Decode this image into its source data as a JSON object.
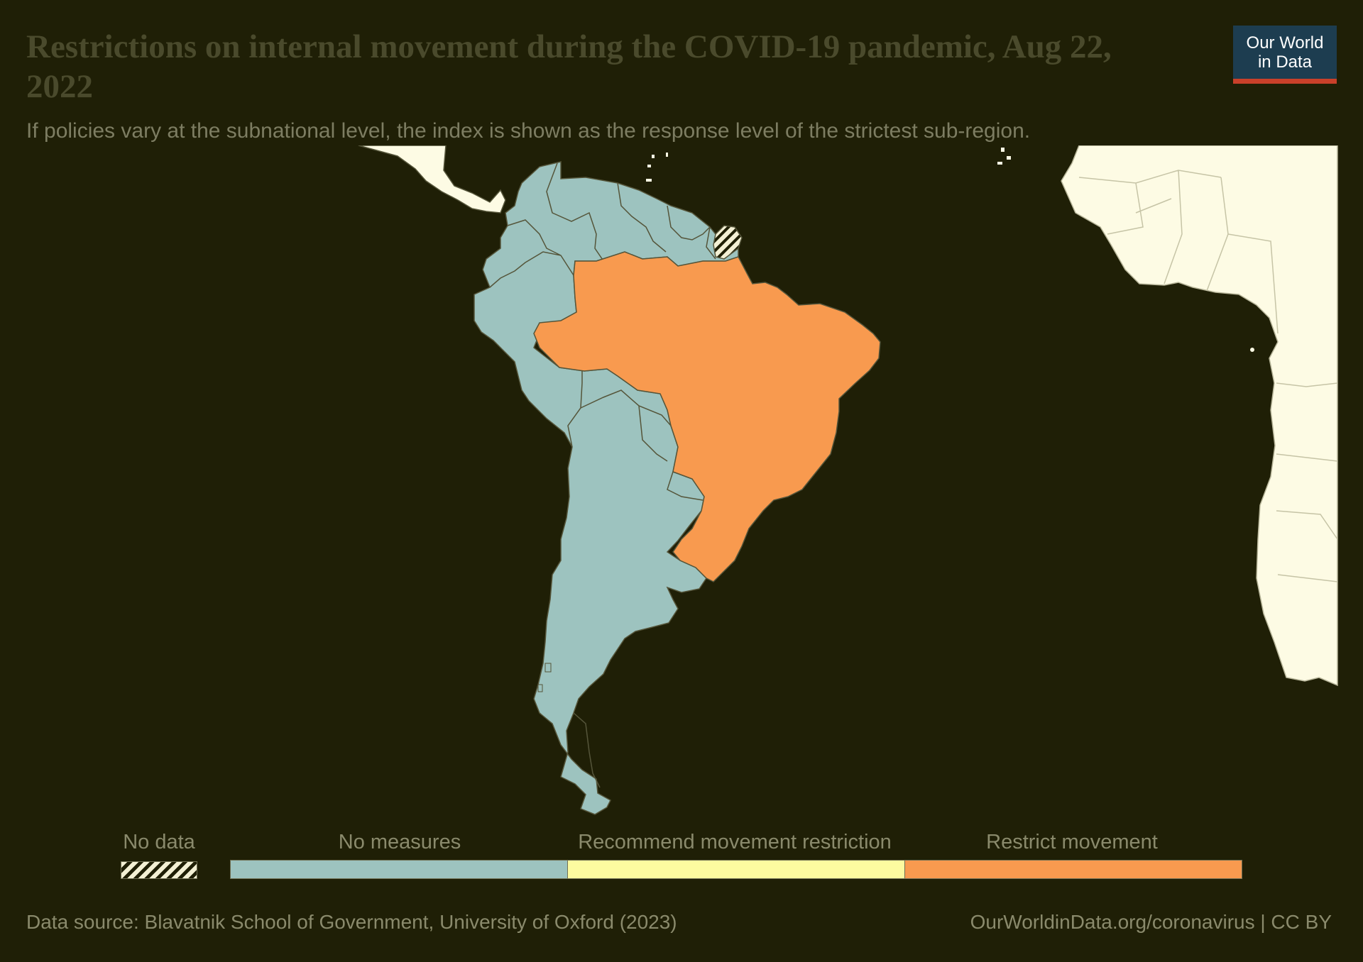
{
  "header": {
    "title": "Restrictions on internal movement during the COVID-19 pandemic, Aug 22, 2022",
    "subtitle": "If policies vary at the subnational level, the index is shown as the response level of the strictest sub-region."
  },
  "logo": {
    "line1": "Our World",
    "line2": "in Data"
  },
  "legend": {
    "no_data_label": "No data",
    "categories": [
      {
        "label": "No measures",
        "color": "#9dc3bf"
      },
      {
        "label": "Recommend movement restriction",
        "color": "#fdfba0"
      },
      {
        "label": "Restrict movement",
        "color": "#f89a4f"
      }
    ]
  },
  "colors": {
    "background": "#1f1f06",
    "land_outside": "#fdfbe4",
    "border": "#55553a",
    "no_measures": "#9dc3bf",
    "recommend": "#fdfba0",
    "restrict": "#f89a4f"
  },
  "map_regions": {
    "restrict_movement": [
      "Brazil"
    ],
    "no_data": [
      "French Guiana"
    ],
    "no_measures": [
      "Colombia",
      "Venezuela",
      "Guyana",
      "Suriname",
      "Ecuador",
      "Peru",
      "Bolivia",
      "Paraguay",
      "Chile",
      "Argentina",
      "Uruguay"
    ]
  },
  "footer": {
    "source": "Data source: Blavatnik School of Government, University of Oxford (2023)",
    "link": "OurWorldinData.org/coronavirus | CC BY"
  }
}
